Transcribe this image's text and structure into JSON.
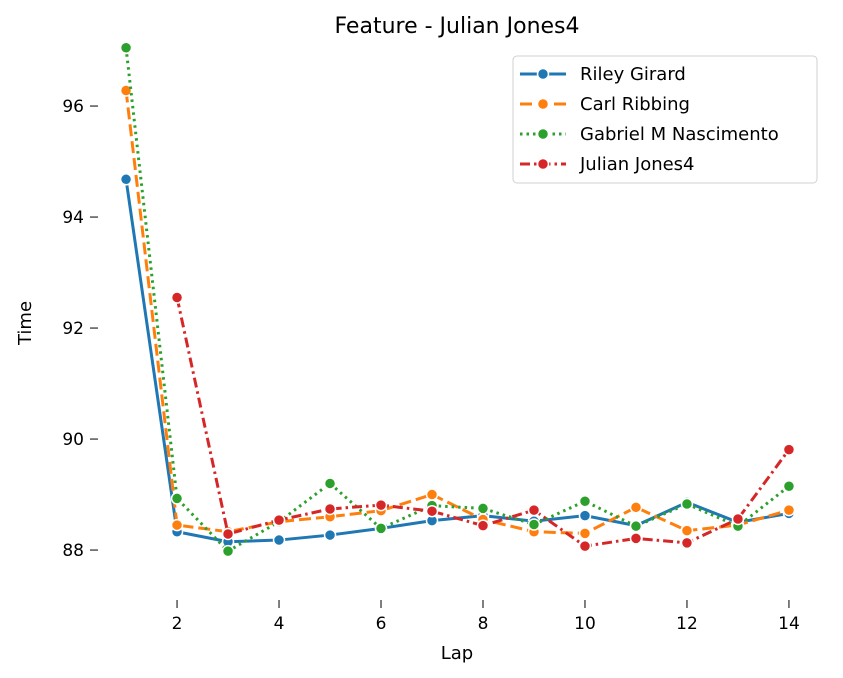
{
  "chart_data": {
    "type": "line",
    "title": "Feature - Julian Jones4",
    "xlabel": "Lap",
    "ylabel": "Time",
    "xlim": [
      0.45,
      14.55
    ],
    "ylim": [
      87.1,
      97.1
    ],
    "xticks": [
      2,
      4,
      6,
      8,
      10,
      12,
      14
    ],
    "yticks": [
      88,
      90,
      92,
      94,
      96
    ],
    "grid": false,
    "legend_position": "top-right",
    "series": [
      {
        "name": "Riley Girard",
        "color": "#1f77b4",
        "dash": "solid",
        "x": [
          1,
          2,
          3,
          4,
          5,
          6,
          7,
          8,
          9,
          10,
          11,
          12,
          13,
          14
        ],
        "y": [
          94.68,
          88.33,
          88.15,
          88.18,
          88.27,
          88.39,
          88.53,
          88.62,
          88.52,
          88.62,
          88.44,
          88.86,
          88.5,
          88.66
        ]
      },
      {
        "name": "Carl Ribbing",
        "color": "#ff7f0e",
        "dash": "dashed",
        "x": [
          1,
          2,
          3,
          4,
          5,
          6,
          7,
          8,
          9,
          10,
          11,
          12,
          13,
          14
        ],
        "y": [
          96.28,
          88.45,
          88.33,
          88.51,
          88.6,
          88.71,
          89.0,
          88.55,
          88.33,
          88.3,
          88.77,
          88.35,
          88.45,
          88.72
        ]
      },
      {
        "name": "Gabriel M Nascimento",
        "color": "#2ca02c",
        "dash": "dotted",
        "x": [
          1,
          2,
          3,
          4,
          5,
          6,
          7,
          8,
          9,
          10,
          11,
          12,
          13,
          14
        ],
        "y": [
          97.05,
          88.93,
          87.98,
          88.51,
          89.2,
          88.39,
          88.8,
          88.75,
          88.46,
          88.88,
          88.43,
          88.83,
          88.43,
          89.15
        ]
      },
      {
        "name": "Julian Jones4",
        "color": "#d62728",
        "dash": "dashdot",
        "x": [
          2,
          3,
          4,
          5,
          6,
          7,
          8,
          9,
          10,
          11,
          12,
          13,
          14
        ],
        "y": [
          92.55,
          88.29,
          88.54,
          88.74,
          88.81,
          88.7,
          88.44,
          88.72,
          88.07,
          88.21,
          88.13,
          88.56,
          89.81
        ]
      }
    ]
  }
}
